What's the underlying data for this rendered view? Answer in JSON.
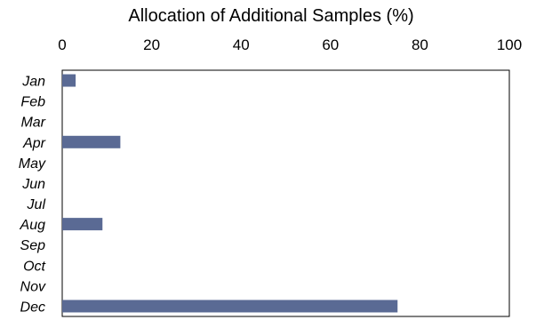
{
  "chart_data": {
    "type": "bar",
    "orientation": "horizontal",
    "title": "Allocation of Additional Samples (%)",
    "xlabel": "",
    "ylabel": "",
    "categories": [
      "Jan",
      "Feb",
      "Mar",
      "Apr",
      "May",
      "Jun",
      "Jul",
      "Aug",
      "Sep",
      "Oct",
      "Nov",
      "Dec"
    ],
    "values": [
      3,
      0,
      0,
      13,
      0,
      0,
      0,
      9,
      0,
      0,
      0,
      75
    ],
    "xlim": [
      0,
      100
    ],
    "xticks": [
      "0",
      "20",
      "40",
      "60",
      "80",
      "100"
    ],
    "axis_position": "top",
    "grid": false,
    "bar_color": "#5a6a94"
  }
}
